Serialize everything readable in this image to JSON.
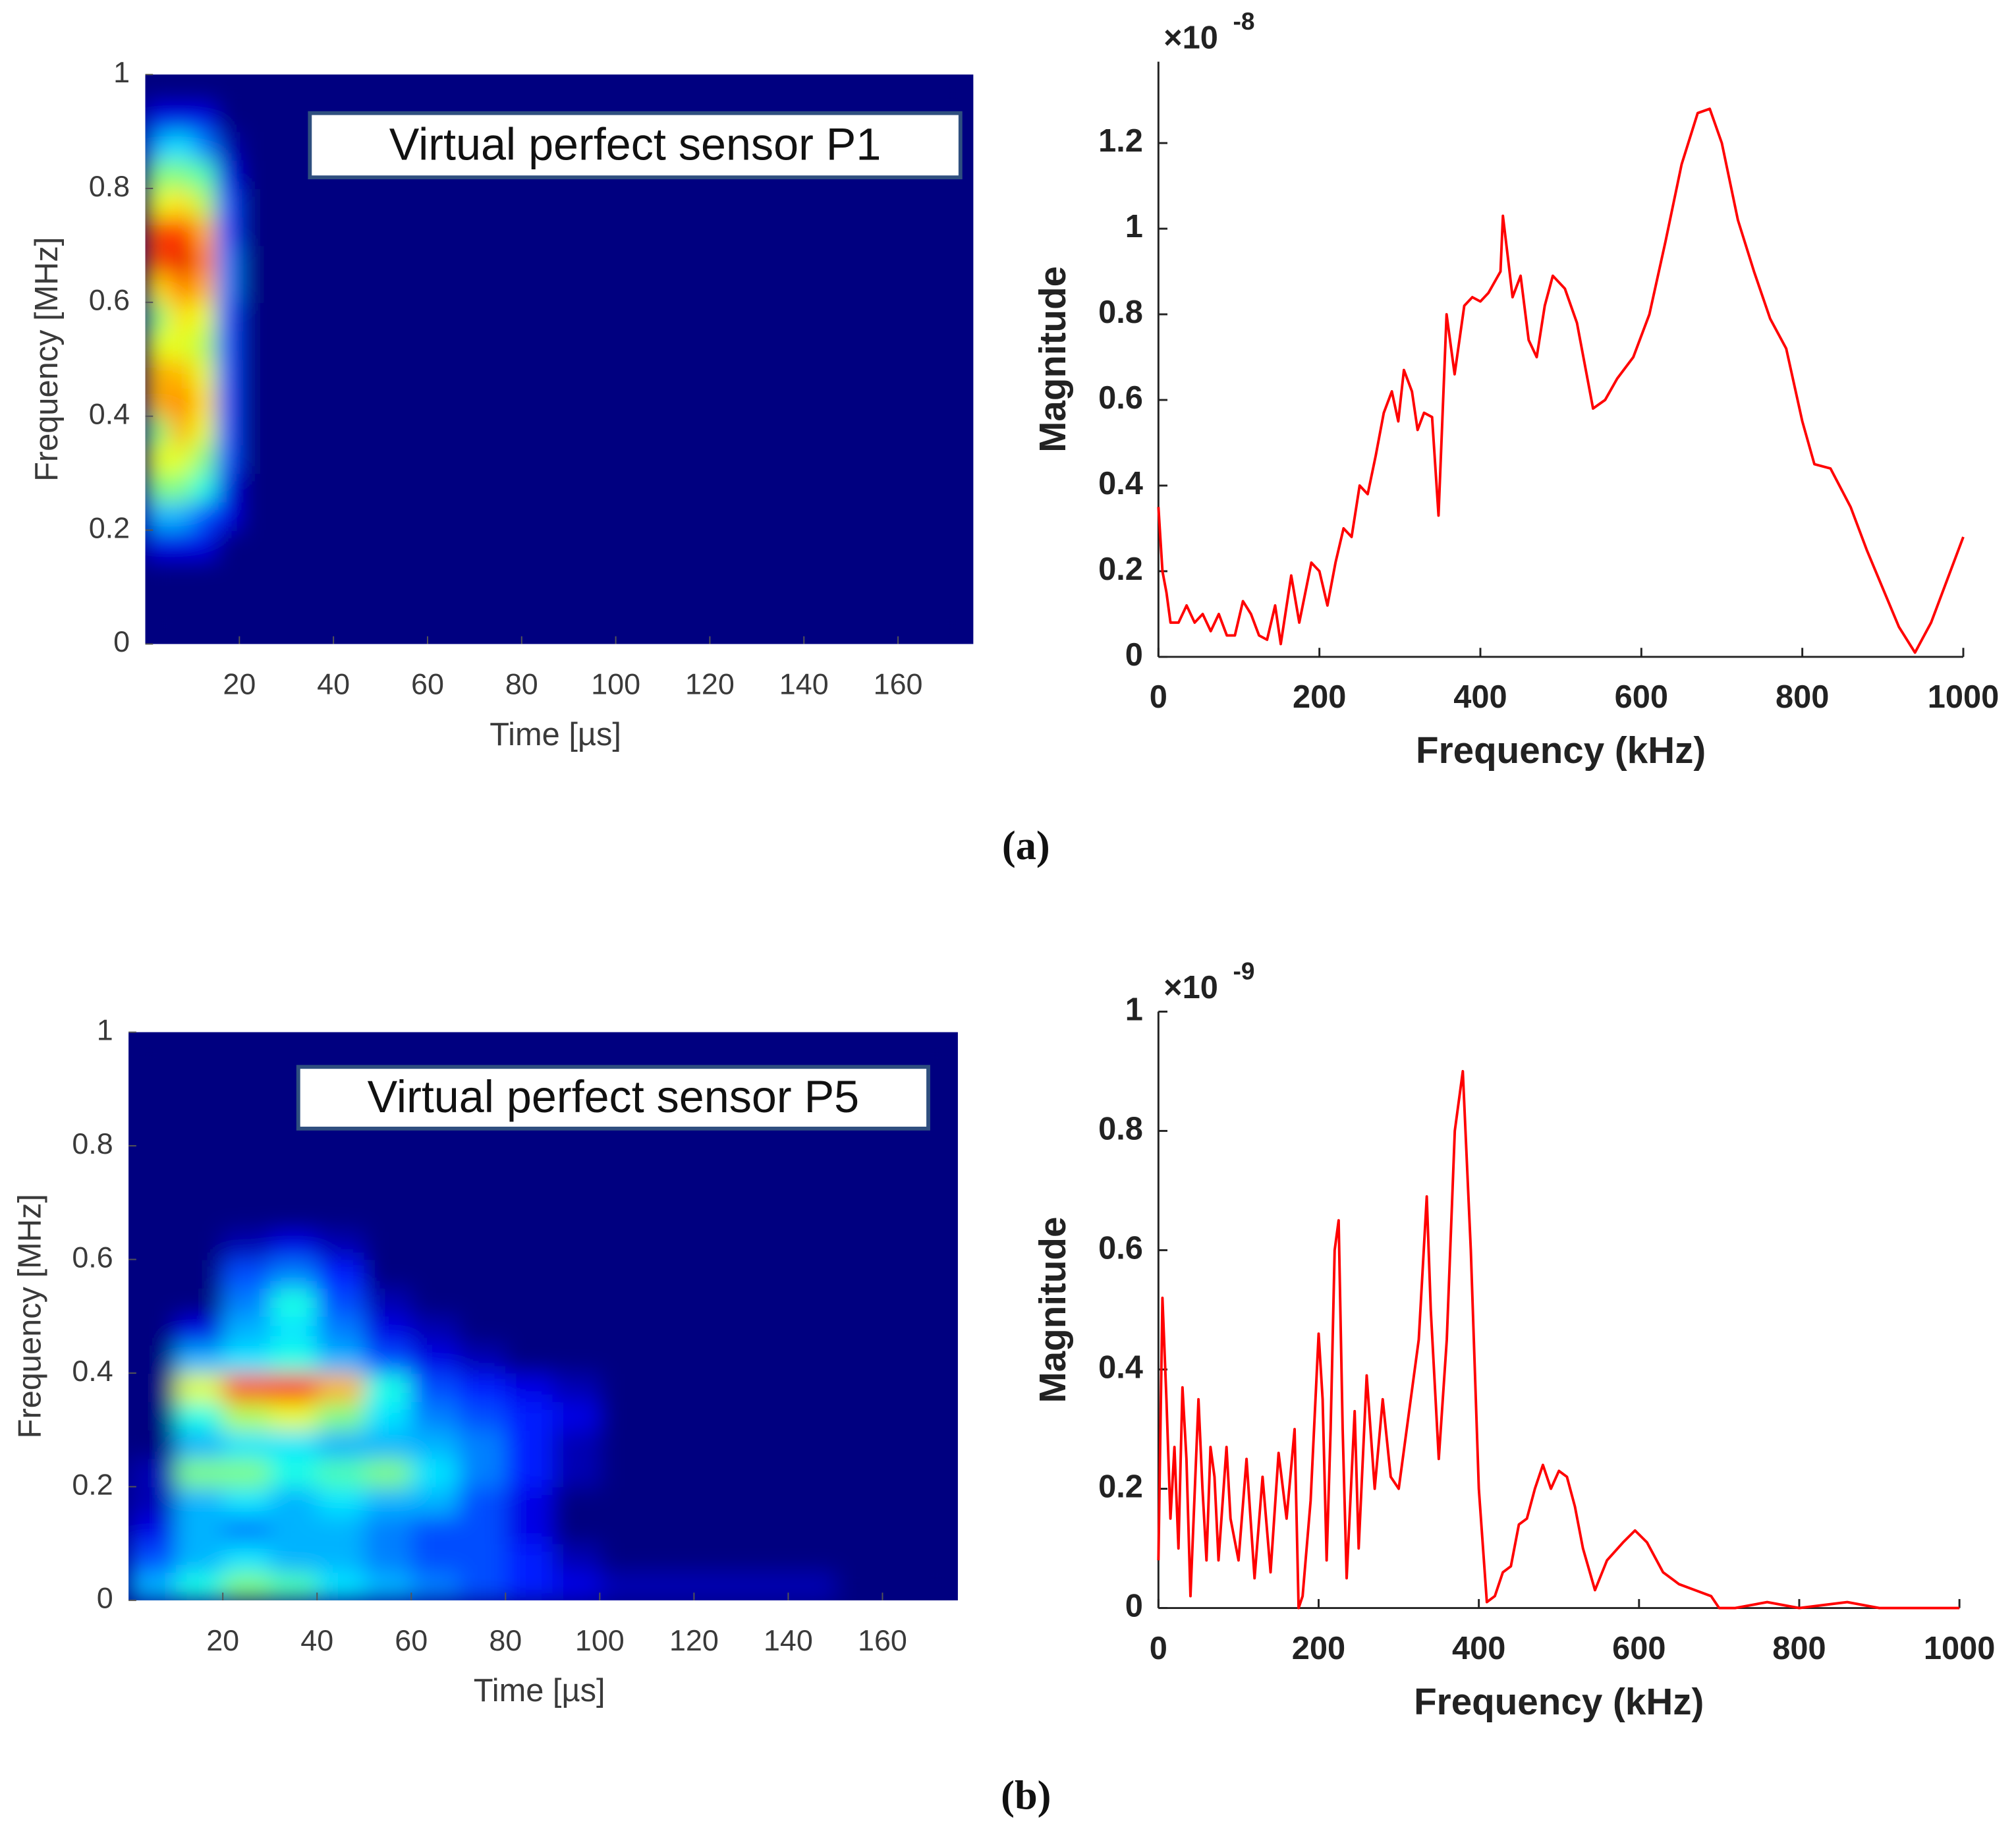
{
  "captions": [
    "(a)",
    "(b)"
  ],
  "chart_data": [
    {
      "type": "heatmap",
      "annotation": "Virtual perfect sensor P1",
      "colormap": "jet",
      "xlabel": "Time [µs]",
      "ylabel": "Frequency [MHz]",
      "xlim": [
        0,
        176
      ],
      "ylim": [
        0,
        1
      ],
      "xticks": [
        20,
        40,
        60,
        80,
        100,
        120,
        140,
        160
      ],
      "yticks": [
        0,
        0.2,
        0.4,
        0.6,
        0.8,
        1
      ],
      "xbins": [
        0,
        5,
        10,
        15,
        20,
        176
      ],
      "ybins": [
        0,
        0.05,
        0.1,
        0.15,
        0.2,
        0.25,
        0.3,
        0.35,
        0.4,
        0.45,
        0.5,
        0.55,
        0.6,
        0.65,
        0.7,
        0.75,
        0.8,
        0.85,
        0.9,
        0.95,
        1
      ],
      "z": [
        [
          0,
          0,
          0,
          0,
          0
        ],
        [
          0,
          0,
          0,
          0,
          0
        ],
        [
          0,
          0,
          0,
          0,
          0
        ],
        [
          0.1,
          0.1,
          0.1,
          0,
          0
        ],
        [
          0.3,
          0.3,
          0.2,
          0.1,
          0
        ],
        [
          0.5,
          0.5,
          0.4,
          0.1,
          0
        ],
        [
          0.6,
          0.6,
          0.5,
          0.2,
          0
        ],
        [
          0.5,
          0.7,
          0.6,
          0.2,
          0
        ],
        [
          0.7,
          0.75,
          0.65,
          0.2,
          0
        ],
        [
          0.7,
          0.7,
          0.6,
          0.2,
          0
        ],
        [
          0.6,
          0.6,
          0.55,
          0.2,
          0
        ],
        [
          0.5,
          0.65,
          0.6,
          0.2,
          0
        ],
        [
          0.65,
          0.75,
          0.7,
          0.25,
          0
        ],
        [
          0.8,
          0.9,
          0.75,
          0.25,
          0
        ],
        [
          0.8,
          0.85,
          0.7,
          0.2,
          0
        ],
        [
          0.6,
          0.65,
          0.55,
          0.2,
          0
        ],
        [
          0.5,
          0.5,
          0.45,
          0.1,
          0
        ],
        [
          0.3,
          0.35,
          0.25,
          0.05,
          0
        ],
        [
          0.1,
          0.1,
          0.1,
          0,
          0
        ],
        [
          0,
          0,
          0,
          0,
          0
        ]
      ]
    },
    {
      "type": "line",
      "xlabel": "Frequency (kHz)",
      "ylabel": "Magnitude",
      "exponent_base": "×10",
      "exponent": "-8",
      "color": "#ff0000",
      "xlim": [
        0,
        1000
      ],
      "ylim": [
        0,
        1.39
      ],
      "xticks": [
        0,
        200,
        400,
        600,
        800,
        1000
      ],
      "yticks": [
        0,
        0.2,
        0.4,
        0.6,
        0.8,
        1,
        1.2
      ],
      "x": [
        0,
        5,
        10,
        15,
        25,
        35,
        45,
        55,
        65,
        75,
        85,
        95,
        105,
        115,
        125,
        135,
        145,
        152,
        165,
        175,
        190,
        200,
        210,
        220,
        230,
        240,
        250,
        260,
        270,
        280,
        290,
        298,
        305,
        315,
        322,
        330,
        340,
        348,
        358,
        368,
        380,
        390,
        400,
        410,
        425,
        428,
        435,
        440,
        450,
        460,
        470,
        480,
        490,
        505,
        520,
        540,
        555,
        570,
        590,
        610,
        630,
        650,
        670,
        685,
        700,
        720,
        740,
        760,
        780,
        800,
        815,
        835,
        860,
        880,
        900,
        920,
        940,
        960,
        980,
        1000
      ],
      "values": [
        0.35,
        0.2,
        0.15,
        0.08,
        0.08,
        0.12,
        0.08,
        0.1,
        0.06,
        0.1,
        0.05,
        0.05,
        0.13,
        0.1,
        0.05,
        0.04,
        0.12,
        0.03,
        0.19,
        0.08,
        0.22,
        0.2,
        0.12,
        0.22,
        0.3,
        0.28,
        0.4,
        0.38,
        0.47,
        0.57,
        0.62,
        0.55,
        0.67,
        0.62,
        0.53,
        0.57,
        0.56,
        0.33,
        0.8,
        0.66,
        0.82,
        0.84,
        0.83,
        0.85,
        0.9,
        1.03,
        0.92,
        0.84,
        0.89,
        0.74,
        0.7,
        0.82,
        0.89,
        0.86,
        0.78,
        0.58,
        0.6,
        0.65,
        0.7,
        0.8,
        0.97,
        1.15,
        1.27,
        1.28,
        1.2,
        1.02,
        0.9,
        0.79,
        0.72,
        0.55,
        0.45,
        0.44,
        0.35,
        0.25,
        0.16,
        0.07,
        0.01,
        0.08,
        0.18,
        0.28
      ]
    },
    {
      "type": "heatmap",
      "annotation": "Virtual perfect sensor P5",
      "colormap": "jet",
      "xlabel": "Time [µs]",
      "ylabel": "Frequency [MHz]",
      "xlim": [
        0,
        176
      ],
      "ylim": [
        0,
        1
      ],
      "xticks": [
        20,
        40,
        60,
        80,
        100,
        120,
        140,
        160
      ],
      "yticks": [
        0,
        0.2,
        0.4,
        0.6,
        0.8,
        1
      ],
      "xbins": [
        0,
        10,
        20,
        30,
        40,
        50,
        60,
        70,
        80,
        90,
        100,
        150,
        176
      ],
      "ybins": [
        0,
        0.05,
        0.1,
        0.15,
        0.2,
        0.25,
        0.3,
        0.35,
        0.4,
        0.45,
        0.5,
        0.55,
        0.6,
        0.65,
        1
      ],
      "z": [
        [
          0.3,
          0.4,
          0.5,
          0.45,
          0.35,
          0.3,
          0.25,
          0.2,
          0.15,
          0.1,
          0.05,
          0
        ],
        [
          0.2,
          0.3,
          0.35,
          0.3,
          0.3,
          0.25,
          0.2,
          0.2,
          0.15,
          0.05,
          0,
          0
        ],
        [
          0.1,
          0.3,
          0.25,
          0.3,
          0.3,
          0.25,
          0.2,
          0.2,
          0.1,
          0,
          0,
          0
        ],
        [
          0.05,
          0.3,
          0.35,
          0.3,
          0.35,
          0.3,
          0.3,
          0.2,
          0.1,
          0,
          0,
          0
        ],
        [
          0.05,
          0.5,
          0.5,
          0.4,
          0.45,
          0.5,
          0.35,
          0.25,
          0.15,
          0.05,
          0,
          0
        ],
        [
          0,
          0.3,
          0.35,
          0.35,
          0.3,
          0.3,
          0.3,
          0.25,
          0.15,
          0.05,
          0,
          0
        ],
        [
          0,
          0.4,
          0.55,
          0.6,
          0.5,
          0.35,
          0.25,
          0.2,
          0.15,
          0.1,
          0,
          0
        ],
        [
          0,
          0.6,
          0.8,
          0.85,
          0.7,
          0.4,
          0.2,
          0.15,
          0.1,
          0.05,
          0,
          0
        ],
        [
          0,
          0.3,
          0.35,
          0.4,
          0.3,
          0.2,
          0.1,
          0.05,
          0,
          0,
          0,
          0
        ],
        [
          0,
          0.1,
          0.3,
          0.35,
          0.25,
          0.1,
          0.05,
          0,
          0,
          0,
          0,
          0
        ],
        [
          0,
          0,
          0.25,
          0.4,
          0.2,
          0.05,
          0,
          0,
          0,
          0,
          0,
          0
        ],
        [
          0,
          0,
          0.2,
          0.25,
          0.15,
          0,
          0,
          0,
          0,
          0,
          0,
          0
        ],
        [
          0,
          0,
          0.05,
          0.1,
          0.05,
          0,
          0,
          0,
          0,
          0,
          0,
          0
        ],
        [
          0,
          0,
          0,
          0,
          0,
          0,
          0,
          0,
          0,
          0,
          0,
          0
        ]
      ]
    },
    {
      "type": "line",
      "xlabel": "Frequency (kHz)",
      "ylabel": "Magnitude",
      "exponent_base": "×10",
      "exponent": "-9",
      "color": "#ff0000",
      "xlim": [
        0,
        1000
      ],
      "ylim": [
        0,
        1
      ],
      "xticks": [
        0,
        200,
        400,
        600,
        800,
        1000
      ],
      "yticks": [
        0,
        0.2,
        0.4,
        0.6,
        0.8,
        1
      ],
      "x": [
        0,
        5,
        10,
        15,
        20,
        25,
        30,
        35,
        40,
        50,
        55,
        60,
        65,
        70,
        75,
        85,
        90,
        100,
        110,
        120,
        130,
        140,
        150,
        160,
        170,
        175,
        180,
        190,
        200,
        205,
        210,
        215,
        220,
        225,
        230,
        235,
        245,
        250,
        260,
        270,
        280,
        290,
        300,
        315,
        325,
        335,
        340,
        350,
        360,
        370,
        380,
        390,
        400,
        410,
        420,
        430,
        440,
        450,
        460,
        470,
        480,
        490,
        500,
        510,
        520,
        530,
        545,
        560,
        580,
        595,
        610,
        630,
        650,
        670,
        690,
        700,
        720,
        760,
        800,
        860,
        900,
        1000
      ],
      "values": [
        0.08,
        0.52,
        0.35,
        0.15,
        0.27,
        0.1,
        0.37,
        0.25,
        0.02,
        0.35,
        0.2,
        0.08,
        0.27,
        0.22,
        0.08,
        0.27,
        0.15,
        0.08,
        0.25,
        0.05,
        0.22,
        0.06,
        0.26,
        0.15,
        0.3,
        0,
        0.02,
        0.18,
        0.46,
        0.35,
        0.08,
        0.3,
        0.6,
        0.65,
        0.3,
        0.05,
        0.33,
        0.1,
        0.39,
        0.2,
        0.35,
        0.22,
        0.2,
        0.35,
        0.45,
        0.69,
        0.5,
        0.25,
        0.45,
        0.8,
        0.9,
        0.6,
        0.2,
        0.01,
        0.02,
        0.06,
        0.07,
        0.14,
        0.15,
        0.2,
        0.24,
        0.2,
        0.23,
        0.22,
        0.17,
        0.1,
        0.03,
        0.08,
        0.11,
        0.13,
        0.11,
        0.06,
        0.04,
        0.03,
        0.02,
        0,
        0,
        0.01,
        0,
        0.01,
        0,
        0
      ]
    }
  ]
}
